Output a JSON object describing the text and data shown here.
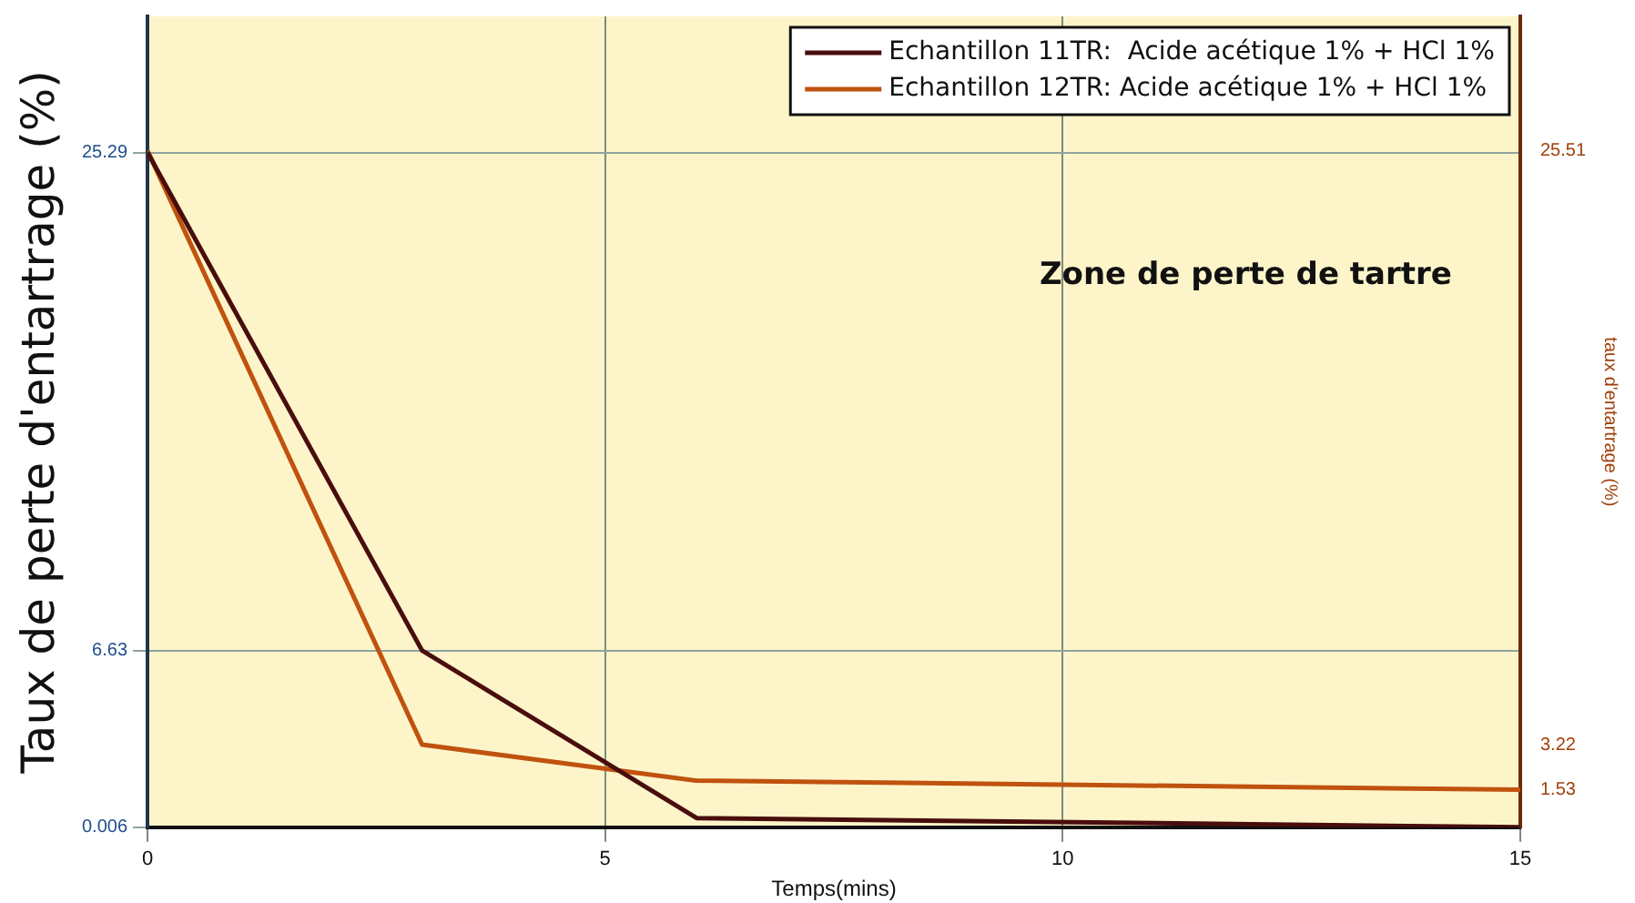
{
  "chart_data": {
    "type": "line",
    "xlabel": "Temps(mins)",
    "ylabel": "Taux de perte d'entartrage (%)",
    "y2label": "taux d'entartrage (%)",
    "x": [
      0,
      3,
      6,
      15
    ],
    "series": [
      {
        "name": "Echantillon 11TR:  Acide acétique 1% + HCl 1%",
        "color": "#4a0d0d",
        "values": [
          25.29,
          6.63,
          0.35,
          0.006
        ]
      },
      {
        "name": "Echantillon 12TR: Acide acétique 1% + HCl 1%",
        "color": "#c0520f",
        "axis": "y2",
        "values": [
          25.51,
          3.22,
          1.87,
          1.53
        ]
      }
    ],
    "xlim": [
      0,
      15
    ],
    "xticks": [
      0,
      5,
      10,
      15
    ],
    "ylim": [
      0.006,
      30.39
    ],
    "yticks": [
      0.006,
      6.63,
      25.29
    ],
    "y2lim": [
      0.12,
      30.55
    ],
    "y2ticks": [
      1.53,
      3.22,
      25.51
    ],
    "annotations": [
      "Zone de perte de tartre"
    ],
    "grid": true,
    "legend": "top right",
    "marker": "none",
    "line_style": "solid"
  }
}
